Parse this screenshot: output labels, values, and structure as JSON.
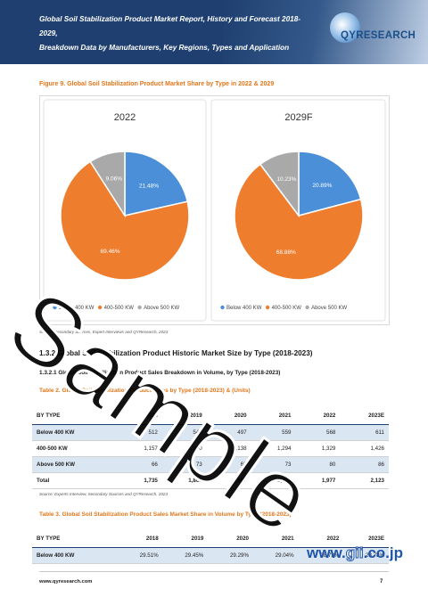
{
  "header": {
    "title_line1": "Global Soil Stabilization Product Market Report, History and Forecast 2018-2029,",
    "title_line2": "Breakdown Data by Manufacturers, Key Regions, Types and Application",
    "logo_text": "QYRESEARCH"
  },
  "figure9": {
    "caption": "Figure 9.   Global Soil Stabilization Product Market Share by Type in 2022 & 2029",
    "source": "Source: Secondary Sources, Expert Interviews and QYResearch, 2023"
  },
  "chart_data": [
    {
      "type": "pie",
      "title": "2022",
      "categories": [
        "Below 400 KW",
        "400-500 KW",
        "Above 500 KW"
      ],
      "values": [
        21.48,
        69.46,
        9.06
      ],
      "labels": [
        "21.48%",
        "69.46%",
        "9.06%"
      ],
      "colors": [
        "#4a8fd8",
        "#ee7d2e",
        "#a9a9a9"
      ],
      "legend_labels": [
        "Below 400 KW",
        "400-500 KW",
        "Above 500 KW"
      ],
      "legend_position": "bottom"
    },
    {
      "type": "pie",
      "title": "2029F",
      "categories": [
        "Below 400 KW",
        "400-500 KW",
        "Above 500 KW"
      ],
      "values": [
        20.89,
        68.88,
        10.23
      ],
      "labels": [
        "20.89%",
        "68.88%",
        "10.23%"
      ],
      "colors": [
        "#4a8fd8",
        "#ee7d2e",
        "#a9a9a9"
      ],
      "legend_labels": [
        "Below 400 KW",
        "400-500 KW",
        "Above 500 KW"
      ],
      "legend_position": "bottom"
    }
  ],
  "section_1_3_2": "1.3.2   Global Soil Stabilization Product Historic Market Size by Type (2018-2023)",
  "section_1_3_2_1": "1.3.2.1   Global Soil Stabilization Product Sales Breakdown in Volume, by Type (2018-2023)",
  "table2": {
    "caption": "Table 2.   Global Soil Stabilization Product Sales by Type (2018-2023) & (Units)",
    "headers": [
      "BY TYPE",
      "2018",
      "2019",
      "2020",
      "2021",
      "2022",
      "2023E"
    ],
    "rows": [
      [
        "Below 400 KW",
        "512",
        "548",
        "497",
        "559",
        "568",
        "611"
      ],
      [
        "400-500 KW",
        "1,157",
        "1,240",
        "1,138",
        "1,294",
        "1,329",
        "1,426"
      ],
      [
        "Above 500 KW",
        "66",
        "73",
        "62",
        "73",
        "80",
        "86"
      ],
      [
        "Total",
        "1,735",
        "1,861",
        "1,697",
        "1,926",
        "1,977",
        "2,123"
      ]
    ],
    "source": "Source: Experts Interview, Secondary Sources and QYResearch, 2023"
  },
  "table3": {
    "caption": "Table 3.   Global Soil Stabilization Product Sales Market Share in Volume by Type (2018-2023)",
    "headers": [
      "BY TYPE",
      "2018",
      "2019",
      "2020",
      "2021",
      "2022",
      "2023E"
    ],
    "rows": [
      [
        "Below 400 KW",
        "29.51%",
        "29.45%",
        "29.29%",
        "29.04%",
        "28.73%",
        "28.78%"
      ]
    ]
  },
  "footer": {
    "url": "www.qyresearch.com",
    "page": "7"
  },
  "watermark": "Sample",
  "gii": {
    "part1": "www.",
    "part2": "gii",
    "part3": ".co.jp"
  }
}
